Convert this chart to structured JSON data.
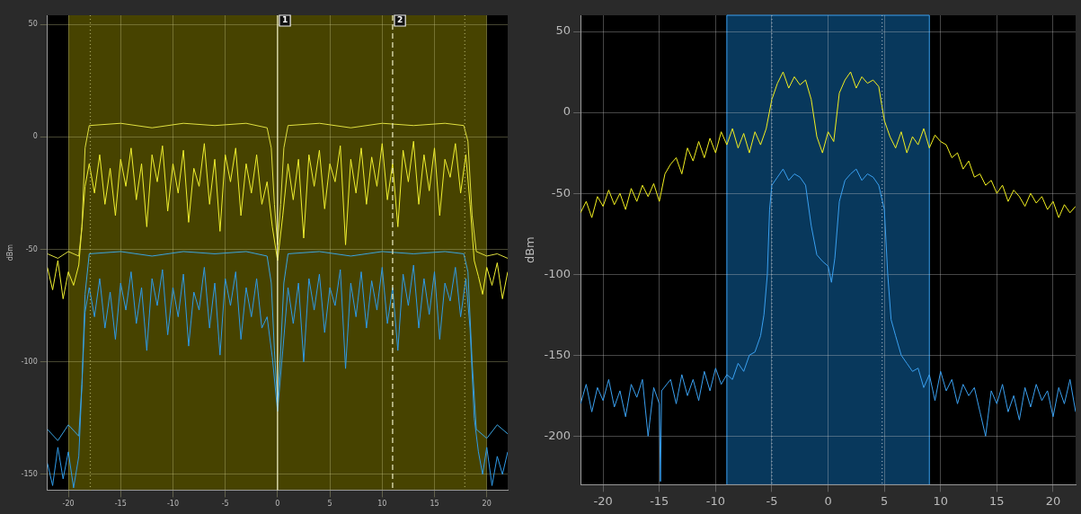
{
  "chart_data": [
    {
      "type": "line",
      "ylabel": "dBm",
      "grid": true,
      "legend": false,
      "xlim": [
        -22,
        22
      ],
      "ylim": [
        -157,
        54
      ],
      "xticks": [
        -20,
        -15,
        -10,
        -5,
        0,
        5,
        10,
        15,
        20
      ],
      "yticks": [
        50,
        0,
        -50,
        -100,
        -150
      ],
      "bands": [
        {
          "axis": "x",
          "from": -20,
          "to": 20,
          "color": "#474300"
        }
      ],
      "annotations": [
        {
          "text": "1",
          "x": 0,
          "y": 54
        },
        {
          "text": "2",
          "x": 11,
          "y": 54
        }
      ],
      "ref_lines": [
        {
          "axis": "x",
          "value": 0,
          "color": "#f0f0c8",
          "line_style": "solid"
        },
        {
          "axis": "x",
          "value": 11,
          "color": "#f0f0c8",
          "line_style": "dashed"
        },
        {
          "axis": "x",
          "value": -17.9,
          "color": "#a8a860",
          "line_style": "dotted"
        },
        {
          "axis": "x",
          "value": 17.9,
          "color": "#a8a860",
          "line_style": "dotted"
        }
      ],
      "series": [
        {
          "color": "#e0e040",
          "x": [
            -22,
            -21,
            -20,
            -19,
            -18.7,
            -18.4,
            -18,
            -15,
            -12,
            -9,
            -6,
            -3,
            -1,
            -0.6,
            -0.3,
            0,
            0.3,
            0.6,
            1,
            4,
            7,
            10,
            13,
            16,
            17.8,
            18.2,
            18.6,
            19,
            20,
            21,
            22
          ],
          "values": [
            -52,
            -54,
            -51,
            -53,
            -40,
            -5,
            5,
            6,
            4,
            6,
            5,
            6,
            4,
            -5,
            -30,
            -48,
            -30,
            -5,
            5,
            6,
            4,
            6,
            5,
            6,
            5,
            -2,
            -35,
            -51,
            -53,
            -52,
            -54
          ]
        },
        {
          "color": "#f0f030",
          "x": [
            -22,
            -21.5,
            -21,
            -20.5,
            -20,
            -19.5,
            -19,
            -18.7,
            -18.4,
            -18,
            -17.5,
            -17,
            -16.5,
            -16,
            -15.5,
            -15,
            -14.5,
            -14,
            -13.5,
            -13,
            -12.5,
            -12,
            -11.5,
            -11,
            -10.5,
            -10,
            -9.5,
            -9,
            -8.5,
            -8,
            -7.5,
            -7,
            -6.5,
            -6,
            -5.5,
            -5,
            -4.5,
            -4,
            -3.5,
            -3,
            -2.5,
            -2,
            -1.5,
            -1,
            -0.5,
            0,
            0.5,
            1,
            1.5,
            2,
            2.5,
            3,
            3.5,
            4,
            4.5,
            5,
            5.5,
            6,
            6.5,
            7,
            7.5,
            8,
            8.5,
            9,
            9.5,
            10,
            10.5,
            11,
            11.5,
            12,
            12.5,
            13,
            13.5,
            14,
            14.5,
            15,
            15.5,
            16,
            16.5,
            17,
            17.5,
            18,
            18.4,
            18.8,
            19.2,
            19.6,
            20,
            20.5,
            21,
            21.5,
            22
          ],
          "values": [
            -58,
            -68,
            -55,
            -72,
            -60,
            -66,
            -57,
            -40,
            -22,
            -12,
            -25,
            -8,
            -30,
            -14,
            -35,
            -10,
            -22,
            -5,
            -28,
            -12,
            -40,
            -8,
            -20,
            -4,
            -33,
            -12,
            -25,
            -6,
            -38,
            -14,
            -22,
            -3,
            -30,
            -10,
            -42,
            -8,
            -20,
            -5,
            -35,
            -12,
            -25,
            -8,
            -30,
            -20,
            -40,
            -55,
            -35,
            -12,
            -28,
            -10,
            -45,
            -8,
            -22,
            -6,
            -32,
            -12,
            -20,
            -4,
            -48,
            -10,
            -25,
            -5,
            -30,
            -9,
            -22,
            -3,
            -28,
            -12,
            -40,
            -6,
            -20,
            -2,
            -30,
            -8,
            -24,
            -5,
            -35,
            -10,
            -18,
            -3,
            -25,
            -8,
            -30,
            -55,
            -62,
            -70,
            -58,
            -66,
            -56,
            -72,
            -60
          ]
        },
        {
          "color": "#3ba4e0",
          "x": [
            -22,
            -21,
            -20,
            -19,
            -18.7,
            -18.4,
            -18,
            -15,
            -12,
            -9,
            -6,
            -3,
            -1,
            -0.6,
            -0.3,
            0,
            0.3,
            0.6,
            1,
            4,
            7,
            10,
            13,
            16,
            17.8,
            18.2,
            18.6,
            19,
            20,
            21,
            22
          ],
          "values": [
            -130,
            -135,
            -128,
            -133,
            -110,
            -70,
            -52,
            -51,
            -53,
            -51,
            -52,
            -51,
            -53,
            -65,
            -95,
            -118,
            -95,
            -65,
            -52,
            -51,
            -53,
            -51,
            -52,
            -51,
            -52,
            -60,
            -100,
            -130,
            -134,
            -128,
            -132
          ]
        },
        {
          "color": "#2f9be8",
          "x": [
            -22,
            -21.5,
            -21,
            -20.5,
            -20,
            -19.5,
            -19,
            -18.7,
            -18.4,
            -18,
            -17.5,
            -17,
            -16.5,
            -16,
            -15.5,
            -15,
            -14.5,
            -14,
            -13.5,
            -13,
            -12.5,
            -12,
            -11.5,
            -11,
            -10.5,
            -10,
            -9.5,
            -9,
            -8.5,
            -8,
            -7.5,
            -7,
            -6.5,
            -6,
            -5.5,
            -5,
            -4.5,
            -4,
            -3.5,
            -3,
            -2.5,
            -2,
            -1.5,
            -1,
            -0.5,
            0,
            0.5,
            1,
            1.5,
            2,
            2.5,
            3,
            3.5,
            4,
            4.5,
            5,
            5.5,
            6,
            6.5,
            7,
            7.5,
            8,
            8.5,
            9,
            9.5,
            10,
            10.5,
            11,
            11.5,
            12,
            12.5,
            13,
            13.5,
            14,
            14.5,
            15,
            15.5,
            16,
            16.5,
            17,
            17.5,
            18,
            18.4,
            18.8,
            19.2,
            19.6,
            20,
            20.5,
            21,
            21.5,
            22
          ],
          "values": [
            -145,
            -155,
            -138,
            -152,
            -140,
            -156,
            -142,
            -110,
            -78,
            -67,
            -80,
            -63,
            -85,
            -69,
            -90,
            -65,
            -77,
            -60,
            -83,
            -67,
            -95,
            -63,
            -75,
            -59,
            -88,
            -67,
            -80,
            -61,
            -93,
            -69,
            -77,
            -58,
            -85,
            -65,
            -97,
            -63,
            -75,
            -60,
            -90,
            -67,
            -80,
            -63,
            -85,
            -80,
            -98,
            -122,
            -95,
            -67,
            -83,
            -65,
            -100,
            -63,
            -77,
            -61,
            -87,
            -67,
            -75,
            -59,
            -103,
            -65,
            -80,
            -60,
            -85,
            -64,
            -77,
            -58,
            -83,
            -67,
            -95,
            -61,
            -75,
            -57,
            -85,
            -63,
            -79,
            -60,
            -90,
            -65,
            -73,
            -58,
            -80,
            -63,
            -85,
            -125,
            -140,
            -150,
            -138,
            -155,
            -142,
            -150,
            -140
          ]
        }
      ]
    },
    {
      "type": "line",
      "ylabel": "dBm",
      "grid": true,
      "legend": false,
      "xlim": [
        -22,
        22
      ],
      "ylim": [
        -230,
        60
      ],
      "xticks": [
        -20,
        -15,
        -10,
        -5,
        0,
        5,
        10,
        15,
        20
      ],
      "yticks": [
        50,
        0,
        -50,
        -100,
        -150,
        -200
      ],
      "bands": [
        {
          "axis": "x",
          "from": -9,
          "to": 9,
          "color": "#08385c"
        }
      ],
      "ref_lines": [
        {
          "axis": "x",
          "value": -5,
          "color": "#9ab",
          "line_style": "dotted"
        },
        {
          "axis": "x",
          "value": 4.8,
          "color": "#9ab",
          "line_style": "dotted"
        }
      ],
      "series": [
        {
          "color": "#f2f020",
          "x": [
            -22,
            -21.5,
            -21,
            -20.5,
            -20,
            -19.5,
            -19,
            -18.5,
            -18,
            -17.5,
            -17,
            -16.5,
            -16,
            -15.5,
            -15,
            -14.5,
            -14,
            -13.5,
            -13,
            -12.5,
            -12,
            -11.5,
            -11,
            -10.5,
            -10,
            -9.5,
            -9,
            -8.5,
            -8,
            -7.5,
            -7,
            -6.5,
            -6,
            -5.5,
            -5,
            -4.5,
            -4,
            -3.5,
            -3,
            -2.5,
            -2,
            -1.5,
            -1,
            -0.5,
            0,
            0.5,
            1,
            1.5,
            2,
            2.5,
            3,
            3.5,
            4,
            4.5,
            5,
            5.5,
            6,
            6.5,
            7,
            7.5,
            8,
            8.5,
            9,
            9.5,
            10,
            10.5,
            11,
            11.5,
            12,
            12.5,
            13,
            13.5,
            14,
            14.5,
            15,
            15.5,
            16,
            16.5,
            17,
            17.5,
            18,
            18.5,
            19,
            19.5,
            20,
            20.5,
            21,
            21.5,
            22
          ],
          "values": [
            -62,
            -55,
            -65,
            -52,
            -58,
            -48,
            -57,
            -50,
            -60,
            -47,
            -55,
            -45,
            -52,
            -44,
            -55,
            -38,
            -32,
            -28,
            -38,
            -22,
            -30,
            -18,
            -28,
            -16,
            -25,
            -12,
            -20,
            -10,
            -22,
            -13,
            -25,
            -12,
            -20,
            -10,
            8,
            18,
            25,
            15,
            22,
            17,
            20,
            8,
            -15,
            -25,
            -12,
            -18,
            12,
            20,
            25,
            15,
            22,
            18,
            20,
            16,
            -5,
            -15,
            -22,
            -12,
            -25,
            -15,
            -20,
            -10,
            -22,
            -14,
            -18,
            -20,
            -28,
            -25,
            -35,
            -30,
            -40,
            -38,
            -45,
            -42,
            -50,
            -45,
            -55,
            -48,
            -52,
            -58,
            -50,
            -56,
            -52,
            -60,
            -55,
            -65,
            -57,
            -62,
            -58
          ]
        },
        {
          "color": "#3aa0f0",
          "x": [
            -22,
            -21.5,
            -21,
            -20.5,
            -20,
            -19.5,
            -19,
            -18.5,
            -18,
            -17.5,
            -17,
            -16.5,
            -16,
            -15.5,
            -15,
            -14.9,
            -14.8,
            -14,
            -13.5,
            -13,
            -12.5,
            -12,
            -11.5,
            -11,
            -10.5,
            -10,
            -9.5,
            -9,
            -8.5,
            -8,
            -7.5,
            -7,
            -6.5,
            -6,
            -5.7,
            -5.4,
            -5.2,
            -5,
            -4.5,
            -4,
            -3.5,
            -3,
            -2.5,
            -2,
            -1.5,
            -1,
            -0.5,
            0,
            0.3,
            0.6,
            1,
            1.5,
            2,
            2.5,
            3,
            3.5,
            4,
            4.5,
            5,
            5.3,
            5.6,
            6,
            6.5,
            7,
            7.5,
            8,
            8.5,
            9,
            9.5,
            10,
            10.5,
            11,
            11.5,
            12,
            12.5,
            13,
            13.5,
            14,
            14.5,
            15,
            15.5,
            16,
            16.5,
            17,
            17.5,
            18,
            18.5,
            19,
            19.5,
            20,
            20.5,
            21,
            21.5,
            22
          ],
          "values": [
            -180,
            -168,
            -185,
            -170,
            -178,
            -165,
            -182,
            -172,
            -188,
            -168,
            -176,
            -165,
            -200,
            -170,
            -180,
            -228,
            -172,
            -165,
            -180,
            -162,
            -175,
            -165,
            -178,
            -160,
            -172,
            -158,
            -168,
            -162,
            -165,
            -155,
            -160,
            -150,
            -148,
            -138,
            -125,
            -100,
            -60,
            -45,
            -40,
            -35,
            -42,
            -38,
            -40,
            -45,
            -70,
            -88,
            -92,
            -95,
            -105,
            -90,
            -55,
            -42,
            -38,
            -35,
            -42,
            -38,
            -40,
            -45,
            -60,
            -100,
            -128,
            -138,
            -150,
            -155,
            -160,
            -158,
            -170,
            -162,
            -178,
            -160,
            -172,
            -165,
            -180,
            -168,
            -175,
            -170,
            -185,
            -200,
            -172,
            -180,
            -168,
            -185,
            -175,
            -190,
            -170,
            -182,
            -168,
            -178,
            -172,
            -188,
            -170,
            -180,
            -165,
            -185
          ]
        }
      ]
    }
  ]
}
